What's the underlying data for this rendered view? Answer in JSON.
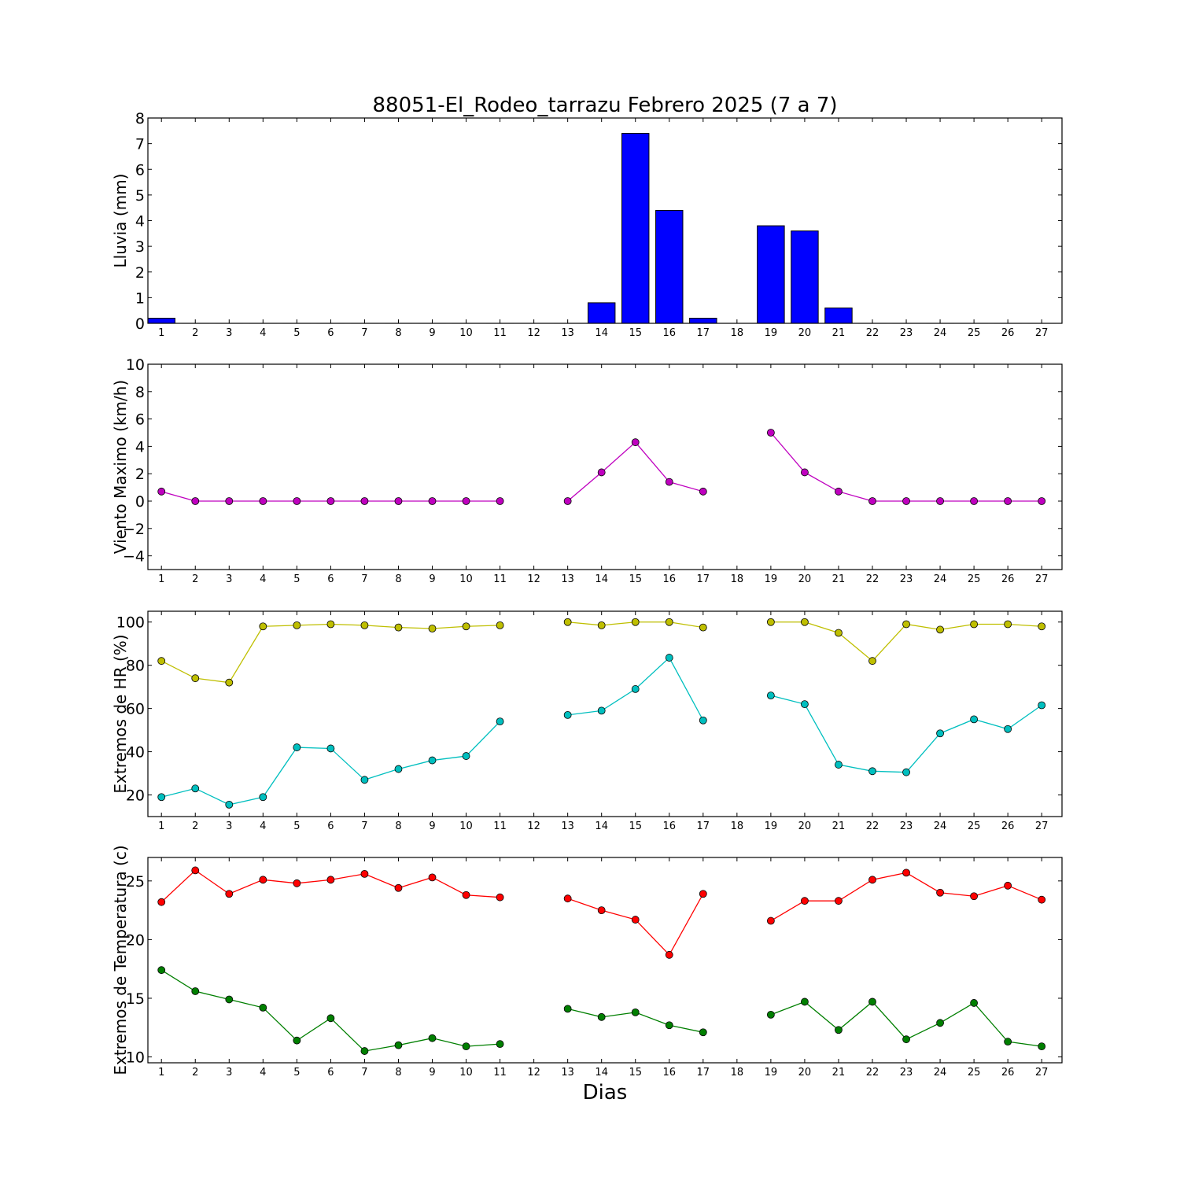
{
  "title": "88051-El_Rodeo_tarrazu Febrero 2025  (7 a 7)",
  "xlabel": "Dias",
  "chart_data": [
    {
      "type": "bar",
      "ylabel": "Lluvia (mm)",
      "ylim": [
        0,
        8
      ],
      "yticks": [
        0,
        1,
        2,
        3,
        4,
        5,
        6,
        7,
        8
      ],
      "x": [
        1,
        2,
        3,
        4,
        5,
        6,
        7,
        8,
        9,
        10,
        11,
        12,
        13,
        14,
        15,
        16,
        17,
        18,
        19,
        20,
        21,
        22,
        23,
        24,
        25,
        26,
        27
      ],
      "xticks": [
        1,
        2,
        3,
        4,
        5,
        6,
        7,
        8,
        9,
        10,
        11,
        12,
        13,
        14,
        15,
        16,
        17,
        18,
        19,
        20,
        21,
        22,
        23,
        24,
        25,
        26,
        27
      ],
      "series": [
        {
          "color": "#0000ff",
          "values": [
            0.2,
            0,
            0,
            0,
            0,
            0,
            0,
            0,
            0,
            0,
            0,
            null,
            0,
            0.8,
            7.4,
            4.4,
            0.2,
            null,
            3.8,
            3.6,
            0.6,
            0,
            0,
            0,
            0,
            0,
            0
          ]
        }
      ]
    },
    {
      "type": "line",
      "ylabel": "Viento Maximo (km/h)",
      "ylim": [
        -5,
        10
      ],
      "yticks": [
        -4,
        -2,
        0,
        2,
        4,
        6,
        8,
        10
      ],
      "yticklabels": [
        "−4",
        "−2",
        "0",
        "2",
        "4",
        "6",
        "8",
        "10"
      ],
      "x": [
        1,
        2,
        3,
        4,
        5,
        6,
        7,
        8,
        9,
        10,
        11,
        12,
        13,
        14,
        15,
        16,
        17,
        18,
        19,
        20,
        21,
        22,
        23,
        24,
        25,
        26,
        27
      ],
      "xticks": [
        1,
        2,
        3,
        4,
        5,
        6,
        7,
        8,
        9,
        10,
        11,
        12,
        13,
        14,
        15,
        16,
        17,
        18,
        19,
        20,
        21,
        22,
        23,
        24,
        25,
        26,
        27
      ],
      "series": [
        {
          "color": "#bf00bf",
          "values": [
            0.7,
            0,
            0,
            0,
            0,
            0,
            0,
            0,
            0,
            0,
            0,
            null,
            0,
            2.1,
            4.3,
            1.4,
            0.7,
            null,
            5.0,
            2.1,
            0.7,
            0,
            0,
            0,
            0,
            0,
            0
          ]
        }
      ]
    },
    {
      "type": "line",
      "ylabel": "Extremos de HR (%)",
      "ylim": [
        10,
        105
      ],
      "yticks": [
        20,
        40,
        60,
        80,
        100
      ],
      "x": [
        1,
        2,
        3,
        4,
        5,
        6,
        7,
        8,
        9,
        10,
        11,
        12,
        13,
        14,
        15,
        16,
        17,
        18,
        19,
        20,
        21,
        22,
        23,
        24,
        25,
        26,
        27
      ],
      "xticks": [
        1,
        2,
        3,
        4,
        5,
        6,
        7,
        8,
        9,
        10,
        11,
        12,
        13,
        14,
        15,
        16,
        17,
        18,
        19,
        20,
        21,
        22,
        23,
        24,
        25,
        26,
        27
      ],
      "series": [
        {
          "color": "#bfbf00",
          "values": [
            82,
            74,
            72,
            98,
            98.5,
            99,
            98.5,
            97.5,
            97,
            98,
            98.5,
            null,
            100,
            98.5,
            100,
            100,
            97.5,
            null,
            100,
            100,
            95,
            82,
            99,
            96.5,
            99,
            99,
            98
          ]
        },
        {
          "color": "#00bfbf",
          "values": [
            19,
            23,
            15.5,
            19,
            42,
            41.5,
            27,
            32,
            36,
            38,
            54,
            null,
            57,
            59,
            69,
            83.5,
            54.5,
            null,
            66,
            62,
            34,
            31,
            30.5,
            48.5,
            55,
            50.5,
            61.5
          ]
        }
      ]
    },
    {
      "type": "line",
      "ylabel": "Extremos de Temperatura (c)",
      "ylim": [
        9.5,
        27
      ],
      "yticks": [
        10,
        15,
        20,
        25
      ],
      "x": [
        1,
        2,
        3,
        4,
        5,
        6,
        7,
        8,
        9,
        10,
        11,
        12,
        13,
        14,
        15,
        16,
        17,
        18,
        19,
        20,
        21,
        22,
        23,
        24,
        25,
        26,
        27
      ],
      "xticks": [
        1,
        2,
        3,
        4,
        5,
        6,
        7,
        8,
        9,
        10,
        11,
        12,
        13,
        14,
        15,
        16,
        17,
        18,
        19,
        20,
        21,
        22,
        23,
        24,
        25,
        26,
        27
      ],
      "series": [
        {
          "color": "#ff0000",
          "values": [
            23.2,
            25.9,
            23.9,
            25.1,
            24.8,
            25.1,
            25.6,
            24.4,
            25.3,
            23.8,
            23.6,
            null,
            23.5,
            22.5,
            21.7,
            18.7,
            23.9,
            null,
            21.6,
            23.3,
            23.3,
            25.1,
            25.7,
            24.0,
            23.7,
            24.6,
            23.4
          ]
        },
        {
          "color": "#007f00",
          "values": [
            17.4,
            15.6,
            14.9,
            14.2,
            11.4,
            13.3,
            10.5,
            11.0,
            11.6,
            10.9,
            11.1,
            null,
            14.1,
            13.4,
            13.8,
            12.7,
            12.1,
            null,
            13.6,
            14.7,
            12.3,
            14.7,
            11.5,
            12.9,
            14.6,
            11.3,
            10.9
          ]
        }
      ]
    }
  ]
}
